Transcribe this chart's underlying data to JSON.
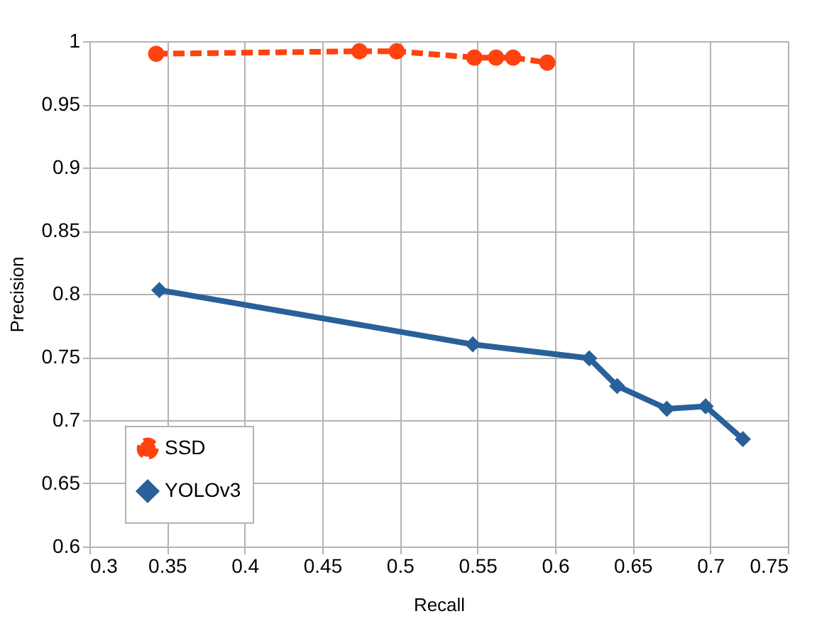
{
  "chart_data": {
    "type": "line",
    "xlabel": "Recall",
    "ylabel": "Precision",
    "xlim": [
      0.3,
      0.75
    ],
    "xticks": [
      0.3,
      0.35,
      0.4,
      0.45,
      0.5,
      0.55,
      0.6,
      0.65,
      0.7,
      0.75
    ],
    "ylim": [
      0.6,
      1
    ],
    "yticks": [
      0.6,
      0.65,
      0.7,
      0.75,
      0.8,
      0.85,
      0.9,
      0.95,
      1
    ],
    "grid": true,
    "legend": "bottom left",
    "series": [
      {
        "name": "SSD",
        "color": "#ff420e",
        "marker": "circle",
        "line_style": "dashed",
        "x": [
          0.343,
          0.474,
          0.498,
          0.548,
          0.562,
          0.573,
          0.595
        ],
        "values": [
          0.99,
          0.992,
          0.992,
          0.987,
          0.987,
          0.987,
          0.983
        ]
      },
      {
        "name": "YOLOv3",
        "color": "#2a6099",
        "marker": "diamond",
        "line_style": "solid",
        "x": [
          0.345,
          0.547,
          0.622,
          0.64,
          0.672,
          0.697,
          0.721
        ],
        "values": [
          0.803,
          0.76,
          0.749,
          0.727,
          0.709,
          0.711,
          0.685
        ]
      }
    ]
  }
}
